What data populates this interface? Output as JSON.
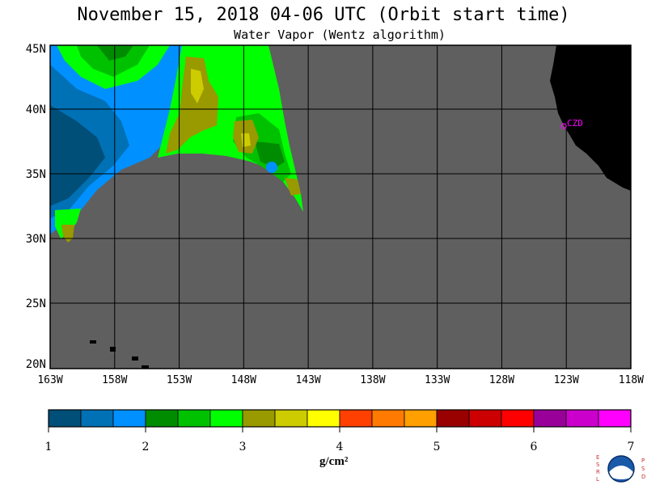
{
  "title": "November 15, 2018  04-06 UTC  (Orbit start time)",
  "subtitle": "Water Vapor (Wentz algorithm)",
  "lat_labels": [
    "45N",
    "40N",
    "35N",
    "30N",
    "25N",
    "20N"
  ],
  "lon_labels": [
    "163W",
    "158W",
    "153W",
    "148W",
    "143W",
    "138W",
    "133W",
    "128W",
    "123W",
    "118W"
  ],
  "station_label": "CZD",
  "colorbar": {
    "ticks": [
      "1",
      "2",
      "3",
      "4",
      "5",
      "6",
      "7"
    ],
    "unit": "g/cm²",
    "colors": [
      "#004f79",
      "#0071b5",
      "#0090ff",
      "#008c00",
      "#00c100",
      "#00ff00",
      "#999900",
      "#cccc00",
      "#ffff00",
      "#ff4000",
      "#ff7a00",
      "#ff9f00",
      "#990000",
      "#cc0000",
      "#ff0000",
      "#990099",
      "#cc00cc",
      "#ff00ff"
    ]
  },
  "colors": {
    "ocean_no_data": "#5f5f5f",
    "land": "#000000",
    "station": "#ff00ff"
  },
  "logo_text": {
    "left": "ESRL",
    "right": "PSD",
    "center": "NOAA"
  }
}
